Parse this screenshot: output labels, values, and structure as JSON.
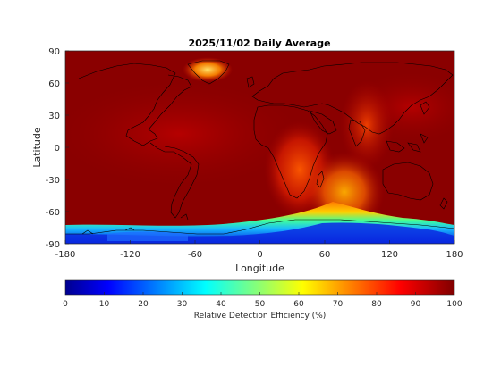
{
  "map": {
    "title": "2025/11/02 Daily Average",
    "xlabel": "Longitude",
    "ylabel": "Latitude",
    "lon_range": [
      -180,
      180
    ],
    "lat_range": [
      -90,
      90
    ],
    "x_ticks": [
      "-180",
      "-120",
      "-60",
      "0",
      "60",
      "120",
      "180"
    ],
    "y_ticks": [
      "90",
      "60",
      "30",
      "0",
      "-30",
      "-60",
      "-90"
    ]
  },
  "colorbar": {
    "label": "Relative Detection Efficiency (%)",
    "ticks": [
      "0",
      "10",
      "20",
      "30",
      "40",
      "50",
      "60",
      "70",
      "80",
      "90",
      "100"
    ],
    "range": [
      0,
      100
    ],
    "colormap": "jet"
  },
  "colors": {
    "dominant": "#800000",
    "high": "#b00000",
    "mid_orange": "#ff6a00",
    "yellow": "#ffd200",
    "cyan": "#27e3ff",
    "blue": "#0000d0"
  }
}
